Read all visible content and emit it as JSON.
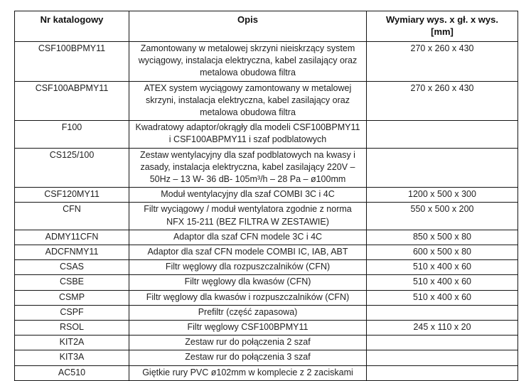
{
  "header": {
    "nr": "Nr katalogowy",
    "opis": "Opis",
    "wymiary_line1": "Wymiary wys. x gł. x wys.",
    "wymiary_line2": "[mm]"
  },
  "rows": [
    {
      "nr": "CSF100BPMY11",
      "opis": "Zamontowany w metalowej skrzyni nieiskrzący system wyciągowy, instalacja elektryczna, kabel zasilający oraz metalowa obudowa filtra",
      "wymiary": "270 x 260 x 430"
    },
    {
      "nr": "CSF100ABPMY11",
      "opis": "ATEX system wyciągowy zamontowany w metalowej skrzyni, instalacja elektryczna, kabel zasilający oraz metalowa obudowa filtra",
      "wymiary": "270 x 260 x 430"
    },
    {
      "nr": "F100",
      "opis": "Kwadratowy adaptor/okrągły dla modeli CSF100BPMY11 i CSF100ABPMY11 i szaf podblatowych",
      "wymiary": ""
    },
    {
      "nr": "CS125/100",
      "opis": "Zestaw wentylacyjny dla szaf podblatowych na kwasy i zasady, instalacja elektryczna, kabel zasilający 220V – 50Hz – 13 W- 36 dB- 105m³/h – 28 Pa – ø100mm",
      "wymiary": ""
    },
    {
      "nr": "CSF120MY11",
      "opis": "Moduł wentylacyjny dla szaf COMBI 3C i 4C",
      "wymiary": "1200 x 500 x 300"
    },
    {
      "nr": "CFN",
      "opis": "Filtr wyciągowy / moduł wentylatora zgodnie z norma NFX 15-211 (BEZ FILTRA W ZESTAWIE)",
      "wymiary": "550 x 500 x 200"
    },
    {
      "nr": "ADMY11CFN",
      "opis": "Adaptor dla szaf CFN modele 3C i 4C",
      "wymiary": "850 x 500 x 80"
    },
    {
      "nr": "ADCFNMY11",
      "opis": "Adaptor dla szaf CFN modele COMBI IC, IAB, ABT",
      "wymiary": "600 x 500 x 80"
    },
    {
      "nr": "CSAS",
      "opis": "Filtr węglowy dla rozpuszczalników (CFN)",
      "wymiary": "510 x 400 x 60"
    },
    {
      "nr": "CSBE",
      "opis": "Filtr węglowy dla kwasów (CFN)",
      "wymiary": "510 x 400 x 60"
    },
    {
      "nr": "CSMP",
      "opis": "Filtr węglowy dla kwasów i rozpuszczalników (CFN)",
      "wymiary": "510 x 400 x 60"
    },
    {
      "nr": "CSPF",
      "opis": "Prefiltr (część zapasowa)",
      "wymiary": ""
    },
    {
      "nr": "RSOL",
      "opis": "Filtr węglowy CSF100BPMY11",
      "wymiary": "245 x 110 x 20"
    },
    {
      "nr": "KIT2A",
      "opis": "Zestaw rur do połączenia 2 szaf",
      "wymiary": ""
    },
    {
      "nr": "KIT3A",
      "opis": "Zestaw rur do połączenia 3 szaf",
      "wymiary": ""
    },
    {
      "nr": "AC510",
      "opis": "Giętkie rury PVC ø102mm w komplecie z 2 zaciskami",
      "wymiary": ""
    }
  ]
}
